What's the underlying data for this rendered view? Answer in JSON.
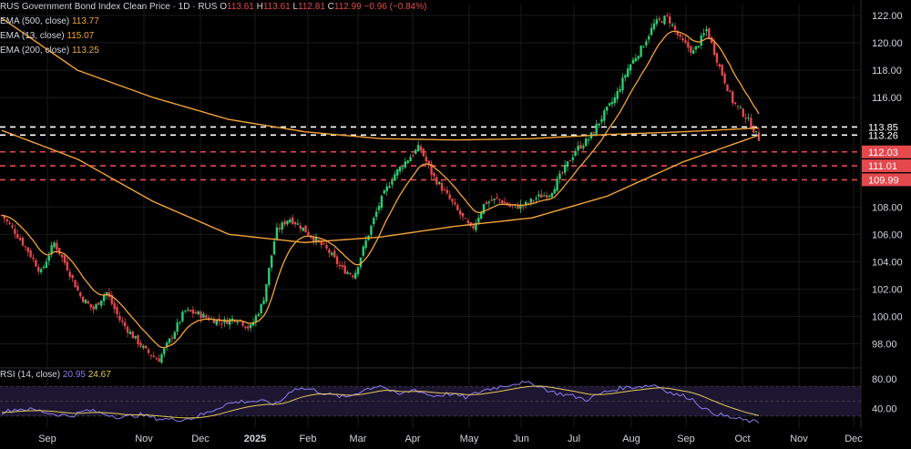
{
  "legend": {
    "title": "RUS Government Bond Index Clean Price · 1D · RUS",
    "o_label": "O",
    "o_value": "113.61",
    "h_label": "H",
    "h_value": "113.61",
    "l_label": "L",
    "l_value": "112.81",
    "c_label": "C",
    "c_value": "112.99",
    "change": "−0.96 (−0.84%)",
    "ema500_label": "EMA (500, close)",
    "ema500_value": "113.77",
    "ema13_label": "EMA (13, close)",
    "ema13_value": "115.07",
    "ema200_label": "EMA (200, close)",
    "ema200_value": "113.25"
  },
  "rsi_legend": {
    "label": "RSI (14, close)",
    "v1": "20.95",
    "v2": "24.67"
  },
  "colors": {
    "up": "#2ecc71",
    "down": "#e5484d",
    "ema": "#f2a33a",
    "rsi": "#8c7cf0",
    "rsi_ma": "#e6c85a",
    "white_line": "#ffffff",
    "red_line": "#e5484d"
  },
  "chart_data": {
    "type": "candlestick",
    "x_ticks": [
      "Sep",
      "Nov",
      "Dec",
      "2025",
      "Feb",
      "Mar",
      "Apr",
      "May",
      "Jun",
      "Jul",
      "Aug",
      "Sep",
      "Oct",
      "Nov",
      "Dec"
    ],
    "y_ticks": [
      "122.00",
      "120.00",
      "118.00",
      "116.00",
      "108.00",
      "106.00",
      "104.00",
      "102.00",
      "100.00",
      "98.00"
    ],
    "ylim": [
      96.5,
      122.8
    ],
    "horizontal_levels": [
      {
        "value": 113.85,
        "label": "113.85",
        "style": "white-dashed"
      },
      {
        "value": 113.26,
        "label": "113.26",
        "style": "white-dashed"
      },
      {
        "value": 112.03,
        "label": "112.03",
        "style": "red-dashed"
      },
      {
        "value": 111.01,
        "label": "111.01",
        "style": "red-dashed"
      },
      {
        "value": 109.99,
        "label": "109.99",
        "style": "red-dashed"
      }
    ],
    "close_path": [
      107.4,
      106.2,
      104.8,
      103.2,
      105.4,
      103.6,
      101.5,
      100.5,
      101.8,
      99.8,
      98.6,
      97.5,
      96.8,
      98.5,
      100.4,
      100.2,
      99.8,
      99.6,
      99.9,
      99.1,
      101.0,
      106.2,
      107.2,
      106.5,
      105.6,
      104.8,
      103.5,
      103.0,
      105.8,
      108.4,
      110.3,
      111.4,
      112.4,
      110.3,
      109.0,
      107.6,
      106.3,
      108.3,
      108.6,
      108.0,
      108.1,
      108.7,
      109.0,
      110.6,
      112.2,
      113.0,
      114.6,
      116.0,
      118.2,
      119.6,
      121.4,
      121.9,
      120.2,
      119.3,
      121.0,
      118.2,
      115.7,
      114.6,
      112.99
    ],
    "ema500_path": [
      121.8,
      118.0,
      116.0,
      114.4,
      113.5,
      113.0,
      112.9,
      113.0,
      113.3,
      113.5,
      113.77
    ],
    "ema200_path": [
      113.6,
      111.5,
      108.4,
      106.0,
      105.4,
      105.8,
      106.6,
      107.2,
      108.8,
      111.3,
      113.25
    ],
    "rsi": {
      "label": "RSI (14, close)",
      "y_ticks": [
        "80.00",
        "40.00"
      ],
      "values": [
        35,
        40,
        38,
        33,
        30,
        38,
        33,
        28,
        32,
        27,
        25,
        27,
        35,
        46,
        50,
        50,
        46,
        68,
        66,
        59,
        55,
        65,
        72,
        58,
        66,
        57,
        60,
        55,
        65,
        70,
        75,
        73,
        62,
        58,
        52,
        62,
        68,
        70,
        72,
        60,
        55,
        37,
        30,
        25,
        21
      ]
    }
  }
}
